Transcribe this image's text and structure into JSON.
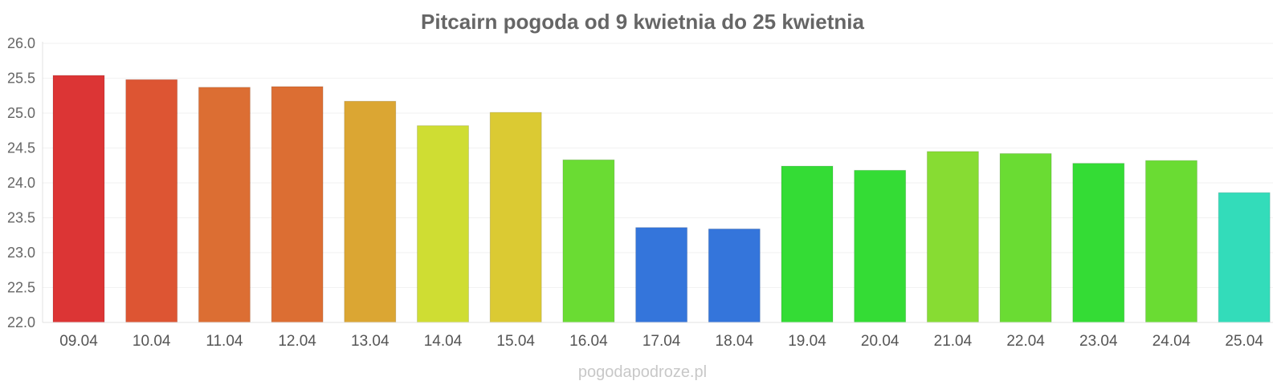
{
  "chart_data": {
    "type": "bar",
    "title": "Pitcairn pogoda od 9 kwietnia do 25 kwietnia",
    "xlabel": "",
    "ylabel": "",
    "ylim": [
      22.0,
      26.0
    ],
    "yticks": [
      "26.0",
      "25.5",
      "25.0",
      "24.5",
      "24.0",
      "23.5",
      "23.0",
      "22.5",
      "22.0"
    ],
    "grid": true,
    "legend": "none",
    "categories": [
      "09.04",
      "10.04",
      "11.04",
      "12.04",
      "13.04",
      "14.04",
      "15.04",
      "16.04",
      "17.04",
      "18.04",
      "19.04",
      "20.04",
      "21.04",
      "22.04",
      "23.04",
      "24.04",
      "25.04"
    ],
    "values": [
      25.54,
      25.48,
      25.37,
      25.38,
      25.17,
      24.82,
      25.01,
      24.33,
      23.36,
      23.34,
      24.24,
      24.18,
      24.45,
      24.42,
      24.28,
      24.32,
      23.86
    ],
    "colors": [
      "#dc3535",
      "#dd5533",
      "#dc6e33",
      "#dc6e33",
      "#dba633",
      "#cfdd33",
      "#dbca33",
      "#6adc33",
      "#3475db",
      "#3475db",
      "#34dc35",
      "#34dc35",
      "#87dc33",
      "#6adc33",
      "#34dc35",
      "#6adc33",
      "#33dcba"
    ]
  },
  "watermark": "pogodapodroze.pl"
}
